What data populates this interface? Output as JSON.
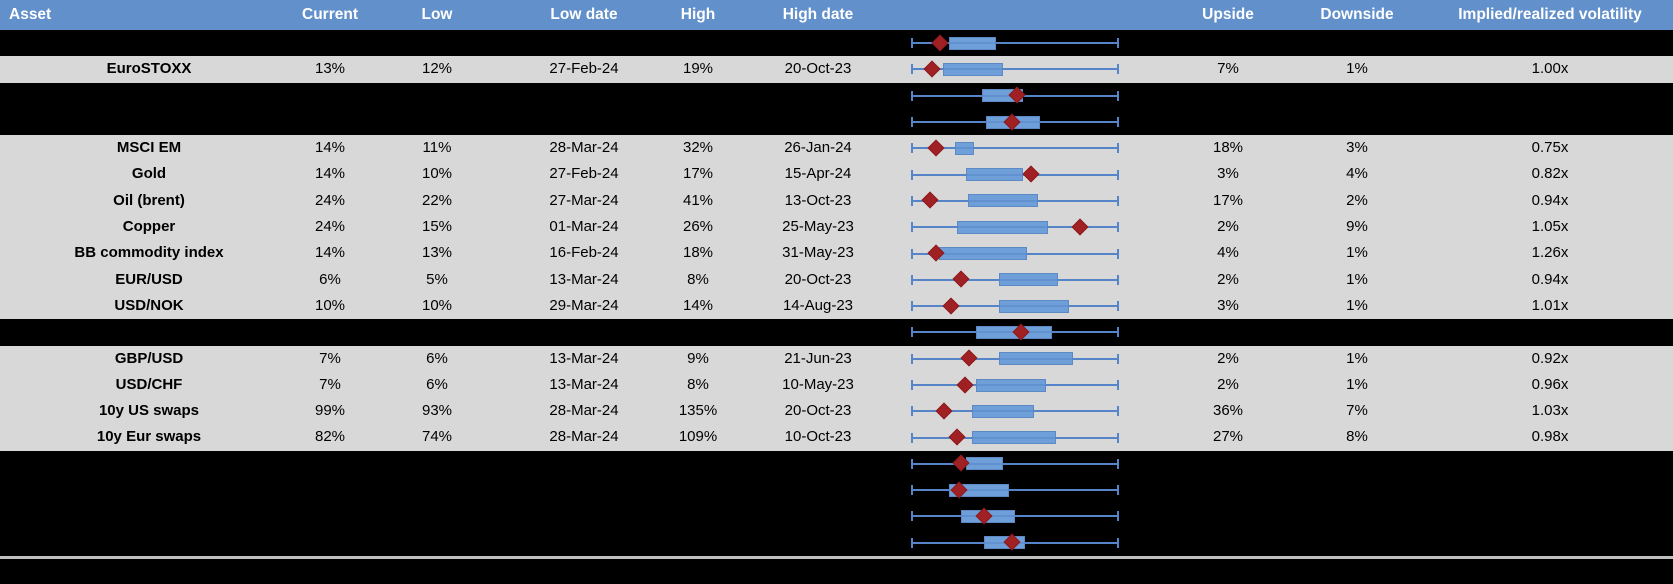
{
  "header": {
    "columns": [
      {
        "key": "asset",
        "label": "Asset"
      },
      {
        "key": "current",
        "label": "Current"
      },
      {
        "key": "low",
        "label": "Low"
      },
      {
        "key": "low_date",
        "label": "Low date"
      },
      {
        "key": "high",
        "label": "High"
      },
      {
        "key": "high_date",
        "label": "High date"
      },
      {
        "key": "upside",
        "label": "Upside"
      },
      {
        "key": "downside",
        "label": "Downside"
      },
      {
        "key": "vol",
        "label": "Implied/realized volatility"
      }
    ]
  },
  "colors": {
    "header_bg": "#6290CB",
    "header_text": "#FFFFFF",
    "row_bg": "#D8D8D8",
    "spacer_bg": "#000000",
    "cell_text": "#000000",
    "whisker": "#5585C8",
    "box_fill": "#6F9FD8",
    "box_border": "#5D8AC4",
    "diamond": "#A02123",
    "divider": "#BFBFBF"
  },
  "chart_data": {
    "type": "boxplot",
    "note": "Each row: 1y implied-volatility range box plot, whiskers span full normalized range (0-1 of plot width), box = interquartile range, diamond = current level",
    "legend_position": "none",
    "grid": false
  },
  "rows": [
    {
      "type": "spacer",
      "box": {
        "lo": 0.18,
        "hi": 0.41,
        "marker": 0.14
      }
    },
    {
      "type": "data",
      "asset": "EuroSTOXX",
      "current": "13%",
      "low": "12%",
      "low_date": "27-Feb-24",
      "high": "19%",
      "high_date": "20-Oct-23",
      "upside": "7%",
      "downside": "1%",
      "vol": "1.00x",
      "box": {
        "lo": 0.15,
        "hi": 0.44,
        "marker": 0.1
      }
    },
    {
      "type": "spacer",
      "box": {
        "lo": 0.34,
        "hi": 0.54,
        "marker": 0.51
      }
    },
    {
      "type": "spacer",
      "box": {
        "lo": 0.36,
        "hi": 0.62,
        "marker": 0.49
      }
    },
    {
      "type": "data",
      "asset": "MSCI EM",
      "current": "14%",
      "low": "11%",
      "low_date": "28-Mar-24",
      "high": "32%",
      "high_date": "26-Jan-24",
      "upside": "18%",
      "downside": "3%",
      "vol": "0.75x",
      "box": {
        "lo": 0.21,
        "hi": 0.3,
        "marker": 0.12
      }
    },
    {
      "type": "data",
      "asset": "Gold",
      "current": "14%",
      "low": "10%",
      "low_date": "27-Feb-24",
      "high": "17%",
      "high_date": "15-Apr-24",
      "upside": "3%",
      "downside": "4%",
      "vol": "0.82x",
      "box": {
        "lo": 0.26,
        "hi": 0.54,
        "marker": 0.58
      }
    },
    {
      "type": "data",
      "asset": "Oil (brent)",
      "current": "24%",
      "low": "22%",
      "low_date": "27-Mar-24",
      "high": "41%",
      "high_date": "13-Oct-23",
      "upside": "17%",
      "downside": "2%",
      "vol": "0.94x",
      "box": {
        "lo": 0.27,
        "hi": 0.61,
        "marker": 0.09
      }
    },
    {
      "type": "data",
      "asset": "Copper",
      "current": "24%",
      "low": "15%",
      "low_date": "01-Mar-24",
      "high": "26%",
      "high_date": "25-May-23",
      "upside": "2%",
      "downside": "9%",
      "vol": "1.05x",
      "box": {
        "lo": 0.22,
        "hi": 0.66,
        "marker": 0.82
      }
    },
    {
      "type": "data",
      "asset": "BB commodity index",
      "current": "14%",
      "low": "13%",
      "low_date": "16-Feb-24",
      "high": "18%",
      "high_date": "31-May-23",
      "upside": "4%",
      "downside": "1%",
      "vol": "1.26x",
      "box": {
        "lo": 0.13,
        "hi": 0.56,
        "marker": 0.12
      }
    },
    {
      "type": "data",
      "asset": "EUR/USD",
      "current": "6%",
      "low": "5%",
      "low_date": "13-Mar-24",
      "high": "8%",
      "high_date": "20-Oct-23",
      "upside": "2%",
      "downside": "1%",
      "vol": "0.94x",
      "box": {
        "lo": 0.42,
        "hi": 0.71,
        "marker": 0.24
      }
    },
    {
      "type": "data",
      "asset": "USD/NOK",
      "current": "10%",
      "low": "10%",
      "low_date": "29-Mar-24",
      "high": "14%",
      "high_date": "14-Aug-23",
      "upside": "3%",
      "downside": "1%",
      "vol": "1.01x",
      "box": {
        "lo": 0.42,
        "hi": 0.76,
        "marker": 0.19
      }
    },
    {
      "type": "spacer",
      "box": {
        "lo": 0.31,
        "hi": 0.68,
        "marker": 0.53
      }
    },
    {
      "type": "data",
      "asset": "GBP/USD",
      "current": "7%",
      "low": "6%",
      "low_date": "13-Mar-24",
      "high": "9%",
      "high_date": "21-Jun-23",
      "upside": "2%",
      "downside": "1%",
      "vol": "0.92x",
      "box": {
        "lo": 0.42,
        "hi": 0.78,
        "marker": 0.28
      }
    },
    {
      "type": "data",
      "asset": "USD/CHF",
      "current": "7%",
      "low": "6%",
      "low_date": "13-Mar-24",
      "high": "8%",
      "high_date": "10-May-23",
      "upside": "2%",
      "downside": "1%",
      "vol": "0.96x",
      "box": {
        "lo": 0.31,
        "hi": 0.65,
        "marker": 0.26
      }
    },
    {
      "type": "data",
      "asset": "10y US swaps",
      "current": "99%",
      "low": "93%",
      "low_date": "28-Mar-24",
      "high": "135%",
      "high_date": "20-Oct-23",
      "upside": "36%",
      "downside": "7%",
      "vol": "1.03x",
      "box": {
        "lo": 0.29,
        "hi": 0.59,
        "marker": 0.16
      }
    },
    {
      "type": "data",
      "asset": "10y Eur swaps",
      "current": "82%",
      "low": "74%",
      "low_date": "28-Mar-24",
      "high": "109%",
      "high_date": "10-Oct-23",
      "upside": "27%",
      "downside": "8%",
      "vol": "0.98x",
      "box": {
        "lo": 0.29,
        "hi": 0.7,
        "marker": 0.22
      }
    },
    {
      "type": "spacer",
      "box": {
        "lo": 0.26,
        "hi": 0.44,
        "marker": 0.24
      }
    },
    {
      "type": "spacer",
      "box": {
        "lo": 0.18,
        "hi": 0.47,
        "marker": 0.23
      }
    },
    {
      "type": "spacer",
      "box": {
        "lo": 0.24,
        "hi": 0.5,
        "marker": 0.35
      }
    },
    {
      "type": "spacer",
      "box": {
        "lo": 0.35,
        "hi": 0.55,
        "marker": 0.49
      }
    }
  ]
}
